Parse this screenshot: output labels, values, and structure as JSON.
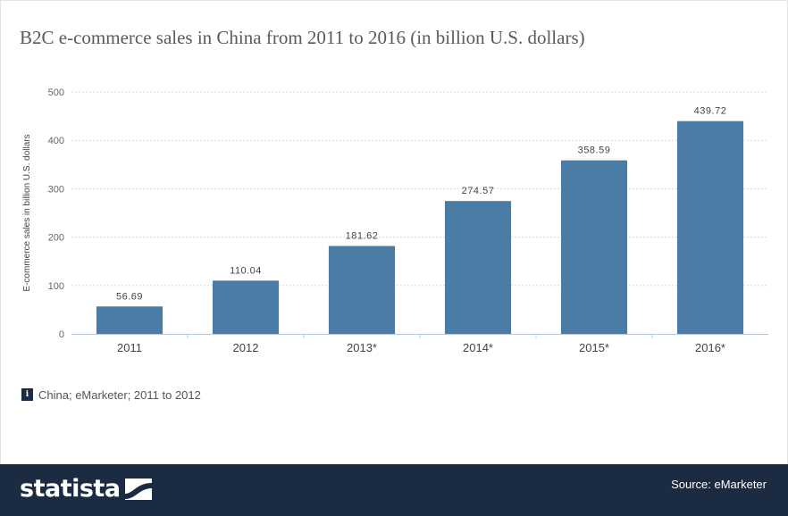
{
  "title": "B2C e-commerce sales in China from 2011 to 2016 (in billion U.S. dollars)",
  "note": {
    "icon": "info-icon",
    "text": "China; eMarketer; 2011 to 2012"
  },
  "footer": {
    "brand": "statista",
    "brand_icon": "statista-logo-icon",
    "source": "Source: eMarketer"
  },
  "colors": {
    "bar": "#4a7ca6",
    "footer": "#1a2b42"
  },
  "chart_data": {
    "type": "bar",
    "title": "B2C e-commerce sales in China from 2011 to 2016 (in billion U.S. dollars)",
    "categories": [
      "2011",
      "2012",
      "2013*",
      "2014*",
      "2015*",
      "2016*"
    ],
    "values": [
      56.69,
      110.04,
      181.62,
      274.57,
      358.59,
      439.72
    ],
    "value_labels": [
      "56.69",
      "110.04",
      "181.62",
      "274.57",
      "358.59",
      "439.72"
    ],
    "xlabel": "",
    "ylabel": "E-commerce sales in billion U.S. dollars",
    "ylim": [
      0,
      500
    ],
    "yticks": [
      0,
      100,
      200,
      300,
      400,
      500
    ],
    "grid": true,
    "legend": "none"
  }
}
